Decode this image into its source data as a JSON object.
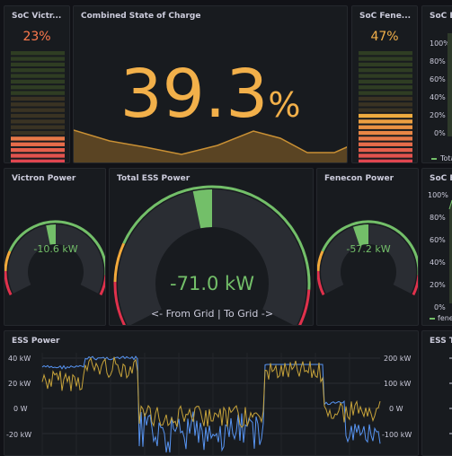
{
  "panels": {
    "soc_victron": {
      "title": "SoC Victr...",
      "value": "23%",
      "percent": 23
    },
    "combined_soc": {
      "title": "Combined State of Charge",
      "value": "39.3",
      "unit": "%"
    },
    "soc_fenecon": {
      "title": "SoC Fene...",
      "value": "47%",
      "percent": 47
    },
    "soc_ess_top": {
      "title": "SoC ES",
      "yticks": [
        "100%",
        "80%",
        "60%",
        "40%",
        "20%",
        "0%"
      ],
      "legend": "Tota"
    },
    "victron_power": {
      "title": "Victron Power",
      "value": "-10.6 kW",
      "level": 0.45
    },
    "total_ess_power": {
      "title": "Total ESS Power",
      "value": "-71.0 kW",
      "footer": "<- From Grid | To Grid ->",
      "level": 0.45
    },
    "fenecon_power": {
      "title": "Fenecon Power",
      "value": "-57.2 kW",
      "level": 0.42
    },
    "soc_ess_mid": {
      "title": "SoC ES",
      "yticks": [
        "100%",
        "80%",
        "60%",
        "40%",
        "20%",
        "0%"
      ],
      "legend": "fenec"
    },
    "ess_power": {
      "title": "ESS Power",
      "left_ticks": [
        "40 kW",
        "20 kW",
        "0 W",
        "-20 kW"
      ],
      "right_ticks": [
        "200 kW",
        "100 kW",
        "0 W",
        "-100 kW"
      ]
    },
    "ess_total": {
      "title": "ESS To",
      "yticks": [
        "",
        "",
        "",
        ""
      ]
    }
  },
  "colors": {
    "green": "#73bf69",
    "orange": "#f2a93b",
    "red": "#e0314c",
    "panel": "#181b1f",
    "text": "#ccccdc"
  }
}
